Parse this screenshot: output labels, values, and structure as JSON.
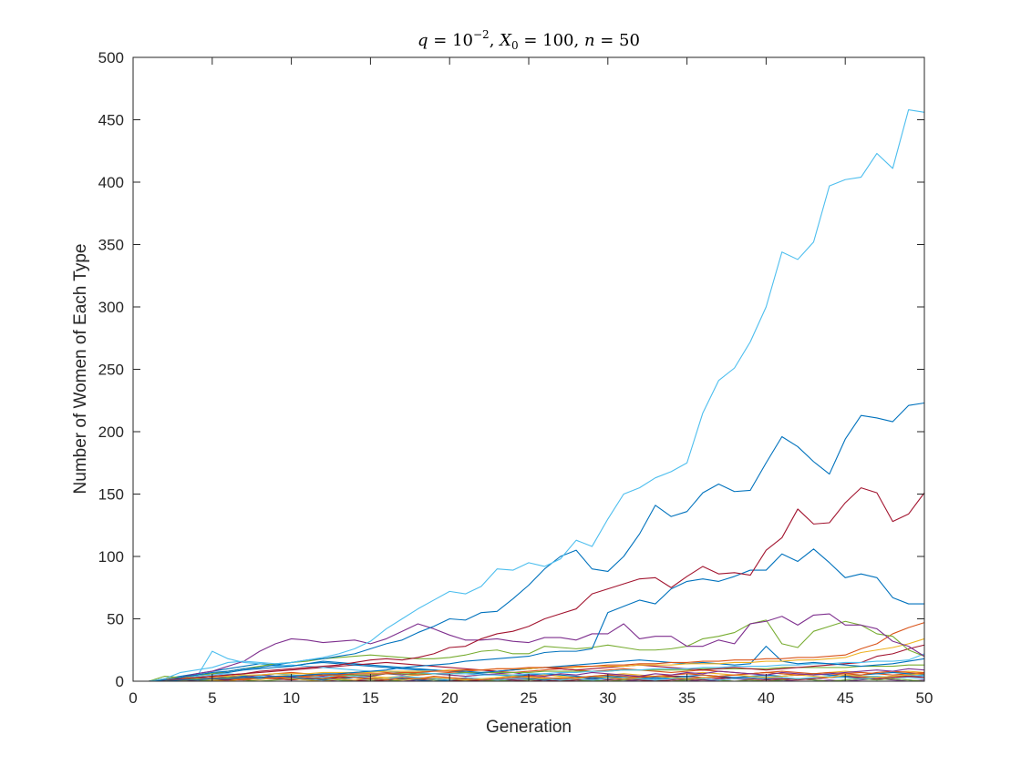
{
  "chart_data": {
    "type": "line",
    "title": {
      "q": "q",
      "eq1": " = 10",
      "exp": "−2",
      "sep1": ", ",
      "X": "X",
      "sub": "0",
      "eq2": " = 100, ",
      "n": "n",
      "eq3": " = 50"
    },
    "xlabel": "Generation",
    "ylabel": "Number of Women of Each Type",
    "xlim": [
      0,
      50
    ],
    "ylim": [
      0,
      500
    ],
    "xticks": [
      "0",
      "5",
      "10",
      "15",
      "20",
      "25",
      "30",
      "35",
      "40",
      "45",
      "50"
    ],
    "yticks": [
      "0",
      "50",
      "100",
      "150",
      "200",
      "250",
      "300",
      "350",
      "400",
      "450",
      "500"
    ],
    "x": [
      1,
      2,
      3,
      4,
      5,
      6,
      7,
      8,
      9,
      10,
      11,
      12,
      13,
      14,
      15,
      16,
      17,
      18,
      19,
      20,
      21,
      22,
      23,
      24,
      25,
      26,
      27,
      28,
      29,
      30,
      31,
      32,
      33,
      34,
      35,
      36,
      37,
      38,
      39,
      40,
      41,
      42,
      43,
      44,
      45,
      46,
      47,
      48,
      49,
      50
    ],
    "series": [
      {
        "color": "#4DBEEE",
        "values": [
          0,
          2,
          7,
          9,
          11,
          15,
          16,
          15,
          14,
          15,
          17,
          19,
          22,
          26,
          32,
          42,
          50,
          58,
          65,
          72,
          70,
          76,
          90,
          89,
          95,
          92,
          98,
          113,
          108,
          130,
          150,
          155,
          163,
          168,
          175,
          215,
          241,
          251,
          272,
          300,
          344,
          338,
          352,
          397,
          402,
          404,
          423,
          411,
          458,
          456
        ]
      },
      {
        "color": "#0072BD",
        "values": [
          0,
          1,
          3,
          5,
          7,
          8,
          10,
          11,
          13,
          15,
          17,
          18,
          20,
          22,
          26,
          30,
          33,
          39,
          44,
          50,
          49,
          55,
          56,
          66,
          77,
          90,
          100,
          105,
          90,
          88,
          100,
          118,
          141,
          132,
          136,
          151,
          158,
          152,
          153,
          175,
          196,
          188,
          176,
          166,
          194,
          213,
          211,
          208,
          221,
          223
        ]
      },
      {
        "color": "#A2142F",
        "values": [
          0,
          1,
          2,
          3,
          4,
          5,
          6,
          8,
          9,
          10,
          11,
          12,
          13,
          15,
          17,
          18,
          17,
          19,
          22,
          27,
          28,
          34,
          38,
          40,
          44,
          50,
          54,
          58,
          70,
          74,
          78,
          82,
          83,
          75,
          84,
          92,
          86,
          87,
          85,
          105,
          115,
          138,
          126,
          127,
          143,
          155,
          151,
          128,
          134,
          151
        ]
      },
      {
        "color": "#0072BD",
        "values": [
          0,
          0,
          1,
          1,
          2,
          2,
          3,
          3,
          4,
          4,
          5,
          6,
          6,
          7,
          8,
          9,
          11,
          12,
          13,
          14,
          16,
          17,
          18,
          19,
          20,
          23,
          24,
          24,
          26,
          55,
          60,
          65,
          62,
          74,
          80,
          82,
          80,
          84,
          89,
          89,
          102,
          96,
          106,
          95,
          83,
          86,
          83,
          67,
          62,
          62
        ]
      },
      {
        "color": "#7E2F8E",
        "values": [
          0,
          1,
          3,
          6,
          8,
          12,
          16,
          24,
          30,
          34,
          33,
          31,
          32,
          33,
          30,
          34,
          40,
          46,
          42,
          37,
          33,
          33,
          34,
          32,
          31,
          35,
          35,
          33,
          38,
          38,
          46,
          34,
          36,
          36,
          28,
          28,
          33,
          30,
          46,
          48,
          52,
          45,
          53,
          54,
          45,
          45,
          42,
          32,
          28,
          20
        ]
      },
      {
        "color": "#77AC30",
        "values": [
          0,
          4,
          3,
          5,
          6,
          8,
          10,
          12,
          14,
          15,
          16,
          18,
          19,
          20,
          21,
          20,
          19,
          18,
          18,
          19,
          21,
          24,
          25,
          22,
          22,
          28,
          27,
          26,
          27,
          29,
          27,
          25,
          25,
          26,
          28,
          34,
          36,
          39,
          46,
          49,
          30,
          27,
          40,
          44,
          48,
          45,
          38,
          36,
          25,
          20
        ]
      },
      {
        "color": "#D95319",
        "values": [
          0,
          1,
          1,
          1,
          2,
          2,
          2,
          3,
          3,
          4,
          4,
          5,
          5,
          6,
          6,
          6,
          7,
          7,
          8,
          8,
          9,
          9,
          10,
          10,
          11,
          11,
          11,
          12,
          12,
          13,
          13,
          14,
          14,
          15,
          15,
          16,
          16,
          17,
          17,
          18,
          18,
          19,
          19,
          20,
          21,
          26,
          30,
          38,
          43,
          47
        ]
      },
      {
        "color": "#EDB120",
        "values": [
          0,
          2,
          3,
          3,
          4,
          4,
          5,
          5,
          6,
          6,
          6,
          7,
          7,
          7,
          7,
          8,
          8,
          8,
          8,
          9,
          9,
          9,
          10,
          10,
          10,
          11,
          11,
          11,
          12,
          12,
          12,
          13,
          13,
          13,
          14,
          14,
          14,
          15,
          15,
          16,
          16,
          17,
          17,
          18,
          19,
          23,
          25,
          27,
          30,
          34
        ]
      },
      {
        "color": "#0072BD",
        "values": [
          0,
          2,
          3,
          5,
          6,
          7,
          9,
          10,
          11,
          12,
          14,
          15,
          14,
          13,
          12,
          11,
          10,
          9,
          9,
          8,
          8,
          7,
          8,
          9,
          10,
          11,
          12,
          13,
          14,
          15,
          16,
          17,
          16,
          15,
          14,
          15,
          14,
          13,
          14,
          28,
          16,
          14,
          15,
          14,
          13,
          12,
          13,
          14,
          16,
          18
        ]
      },
      {
        "color": "#4DBEEE",
        "values": [
          0,
          1,
          2,
          3,
          24,
          18,
          15,
          14,
          12,
          13,
          12,
          11,
          10,
          9,
          8,
          8,
          7,
          7,
          6,
          6,
          6,
          5,
          5,
          5,
          6,
          6,
          7,
          7,
          8,
          8,
          9,
          9,
          10,
          10,
          10,
          11,
          11,
          12,
          12,
          12,
          13,
          13,
          14,
          14,
          15,
          15,
          16,
          16,
          17,
          22
        ]
      },
      {
        "color": "#A2142F",
        "values": [
          0,
          1,
          2,
          3,
          4,
          5,
          6,
          7,
          8,
          9,
          10,
          11,
          12,
          13,
          14,
          15,
          14,
          13,
          12,
          11,
          10,
          9,
          8,
          9,
          10,
          11,
          10,
          9,
          10,
          11,
          12,
          13,
          12,
          11,
          10,
          9,
          10,
          11,
          10,
          9,
          10,
          11,
          12,
          13,
          14,
          15,
          20,
          22,
          26,
          29
        ]
      },
      {
        "color": "#77AC30",
        "values": [
          0,
          1,
          1,
          2,
          2,
          3,
          3,
          3,
          4,
          4,
          4,
          5,
          5,
          5,
          5,
          6,
          6,
          6,
          6,
          6,
          7,
          7,
          7,
          7,
          7,
          8,
          8,
          8,
          8,
          8,
          9,
          9,
          9,
          9,
          9,
          10,
          10,
          10,
          10,
          10,
          11,
          11,
          11,
          11,
          11,
          12,
          12,
          12,
          13,
          13
        ]
      },
      {
        "color": "#7E2F8E",
        "values": [
          0,
          2,
          1,
          3,
          2,
          4,
          3,
          5,
          4,
          3,
          5,
          4,
          6,
          5,
          4,
          6,
          5,
          7,
          6,
          5,
          4,
          5,
          6,
          7,
          5,
          4,
          6,
          5,
          7,
          6,
          5,
          4,
          6,
          5,
          7,
          6,
          8,
          7,
          6,
          5,
          7,
          6,
          5,
          6,
          7,
          8,
          9,
          8,
          10,
          9
        ]
      },
      {
        "color": "#D95319",
        "values": [
          0,
          1,
          2,
          1,
          3,
          2,
          1,
          3,
          2,
          4,
          3,
          2,
          4,
          3,
          2,
          1,
          3,
          2,
          4,
          3,
          2,
          1,
          2,
          3,
          4,
          3,
          2,
          3,
          4,
          5,
          4,
          3,
          4,
          5,
          6,
          5,
          4,
          5,
          6,
          7,
          6,
          5,
          6,
          7,
          6,
          5,
          7,
          8,
          7,
          6
        ]
      },
      {
        "color": "#EDB120",
        "values": [
          0,
          1,
          0,
          2,
          1,
          0,
          2,
          1,
          3,
          2,
          1,
          0,
          2,
          1,
          3,
          2,
          1,
          2,
          3,
          2,
          1,
          2,
          3,
          4,
          3,
          2,
          3,
          2,
          4,
          3,
          2,
          3,
          4,
          3,
          2,
          3,
          4,
          5,
          4,
          3,
          4,
          5,
          4,
          3,
          5,
          4,
          3,
          4,
          5,
          6
        ]
      },
      {
        "color": "#4DBEEE",
        "values": [
          0,
          2,
          3,
          4,
          5,
          6,
          5,
          4,
          6,
          5,
          4,
          3,
          5,
          4,
          3,
          2,
          4,
          3,
          2,
          1,
          3,
          2,
          1,
          2,
          3,
          2,
          1,
          2,
          1,
          2,
          3,
          2,
          1,
          2,
          3,
          2,
          1,
          2,
          3,
          4,
          3,
          2,
          3,
          4,
          3,
          2,
          3,
          4,
          5,
          4
        ]
      },
      {
        "color": "#0072BD",
        "values": [
          0,
          1,
          2,
          3,
          2,
          3,
          4,
          3,
          2,
          3,
          2,
          1,
          2,
          3,
          2,
          1,
          2,
          1,
          0,
          1,
          2,
          1,
          2,
          3,
          2,
          1,
          2,
          3,
          2,
          3,
          4,
          3,
          2,
          3,
          4,
          5,
          4,
          3,
          4,
          5,
          4,
          5,
          6,
          5,
          4,
          5,
          6,
          7,
          6,
          5
        ]
      },
      {
        "color": "#A2142F",
        "values": [
          0,
          1,
          0,
          1,
          2,
          1,
          2,
          3,
          2,
          1,
          2,
          3,
          2,
          1,
          0,
          1,
          2,
          1,
          2,
          1,
          0,
          1,
          2,
          1,
          0,
          1,
          0,
          1,
          2,
          1,
          2,
          1,
          0,
          1,
          2,
          1,
          2,
          3,
          2,
          1,
          2,
          1,
          2,
          3,
          4,
          3,
          2,
          3,
          4,
          3
        ]
      },
      {
        "color": "#77AC30",
        "values": [
          0,
          0,
          1,
          0,
          1,
          2,
          1,
          0,
          1,
          2,
          1,
          2,
          1,
          0,
          1,
          0,
          1,
          2,
          1,
          0,
          1,
          0,
          1,
          0,
          1,
          2,
          1,
          0,
          1,
          0,
          1,
          2,
          1,
          0,
          1,
          2,
          1,
          0,
          1,
          0,
          1,
          2,
          1,
          0,
          1,
          2,
          1,
          2,
          1,
          0
        ]
      },
      {
        "color": "#7E2F8E",
        "values": [
          0,
          1,
          2,
          1,
          0,
          1,
          2,
          3,
          2,
          1,
          2,
          1,
          0,
          1,
          2,
          1,
          0,
          1,
          0,
          1,
          2,
          1,
          0,
          1,
          0,
          0,
          1,
          0,
          1,
          2,
          1,
          0,
          1,
          0,
          1,
          0,
          1,
          2,
          1,
          0,
          1,
          0,
          0,
          1,
          0,
          1,
          2,
          1,
          0,
          1
        ]
      },
      {
        "color": "#D95319",
        "values": [
          0,
          1,
          1,
          2,
          2,
          3,
          4,
          5,
          6,
          7,
          6,
          5,
          6,
          7,
          8,
          7,
          6,
          5,
          6,
          7,
          8,
          9,
          8,
          7,
          8,
          9,
          10,
          9,
          8,
          9,
          10,
          9,
          8,
          7,
          8,
          9,
          8,
          7,
          6,
          7,
          8,
          7,
          6,
          5,
          6,
          7,
          6,
          5,
          6,
          7
        ]
      },
      {
        "color": "#4DBEEE",
        "values": [
          0,
          0,
          1,
          1,
          1,
          2,
          2,
          2,
          3,
          3,
          2,
          2,
          1,
          1,
          2,
          2,
          3,
          3,
          2,
          2,
          1,
          1,
          0,
          1,
          1,
          2,
          2,
          1,
          1,
          0,
          0,
          1,
          1,
          2,
          2,
          1,
          1,
          2,
          2,
          3,
          3,
          2,
          2,
          3,
          3,
          4,
          4,
          3,
          3,
          2
        ]
      },
      {
        "color": "#0072BD",
        "values": [
          0,
          2,
          4,
          6,
          8,
          10,
          12,
          14,
          13,
          12,
          14,
          16,
          15,
          14,
          13,
          12,
          11,
          10,
          9,
          8,
          7,
          6,
          5,
          4,
          5,
          6,
          5,
          4,
          3,
          4,
          3,
          2,
          3,
          2,
          1,
          2,
          1,
          2,
          3,
          2,
          1,
          2,
          1,
          0,
          1,
          2,
          1,
          2,
          1,
          0
        ]
      },
      {
        "color": "#EDB120",
        "values": [
          0,
          1,
          2,
          3,
          4,
          3,
          2,
          3,
          4,
          5,
          4,
          3,
          4,
          5,
          4,
          3,
          4,
          5,
          6,
          5,
          4,
          5,
          6,
          5,
          4,
          5,
          4,
          3,
          4,
          5,
          6,
          5,
          4,
          5,
          6,
          7,
          6,
          5,
          6,
          7,
          6,
          5,
          6,
          7,
          8,
          7,
          6,
          7,
          8,
          7
        ]
      },
      {
        "color": "#A2142F",
        "values": [
          0,
          0,
          0,
          1,
          1,
          1,
          1,
          2,
          2,
          2,
          2,
          3,
          3,
          3,
          3,
          2,
          2,
          2,
          2,
          1,
          1,
          1,
          1,
          2,
          2,
          2,
          2,
          3,
          3,
          3,
          3,
          4,
          4,
          4,
          4,
          3,
          3,
          3,
          3,
          2,
          2,
          2,
          2,
          3,
          3,
          3,
          3,
          4,
          4,
          4
        ]
      }
    ]
  }
}
